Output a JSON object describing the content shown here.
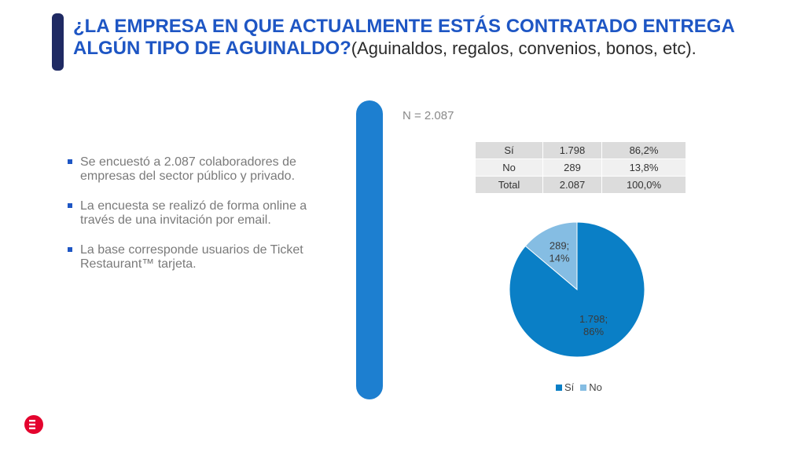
{
  "title": {
    "bold": "¿LA EMPRESA EN QUE ACTUALMENTE ESTÁS CONTRATADO ENTREGA ALGÚN TIPO DE AGUINALDO?",
    "sub": "(Aguinaldos, regalos, convenios, bonos, etc)."
  },
  "bullets": [
    "Se encuestó a 2.087 colaboradores de empresas del sector público y privado.",
    "La encuesta se realizó de forma online a través de una invitación por email.",
    "La base corresponde usuarios de Ticket Restaurant™ tarjeta."
  ],
  "n_label": "N = 2.087",
  "table": {
    "rows": [
      [
        "Sí",
        "1.798",
        "86,2%"
      ],
      [
        "No",
        "289",
        "13,8%"
      ],
      [
        "Total",
        "2.087",
        "100,0%"
      ]
    ]
  },
  "chart_data": {
    "type": "pie",
    "categories": [
      "Sí",
      "No"
    ],
    "values": [
      1798,
      289
    ],
    "percent_labels": [
      "86%",
      "14%"
    ],
    "value_labels": [
      "1.798;",
      "289;"
    ],
    "colors": [
      "#0a7fc6",
      "#85bde3"
    ],
    "legend": "bottom",
    "title": ""
  },
  "colors": {
    "title": "#1e56c4",
    "accent_bar": "#1d7fd0",
    "logo": "#e4032e"
  }
}
